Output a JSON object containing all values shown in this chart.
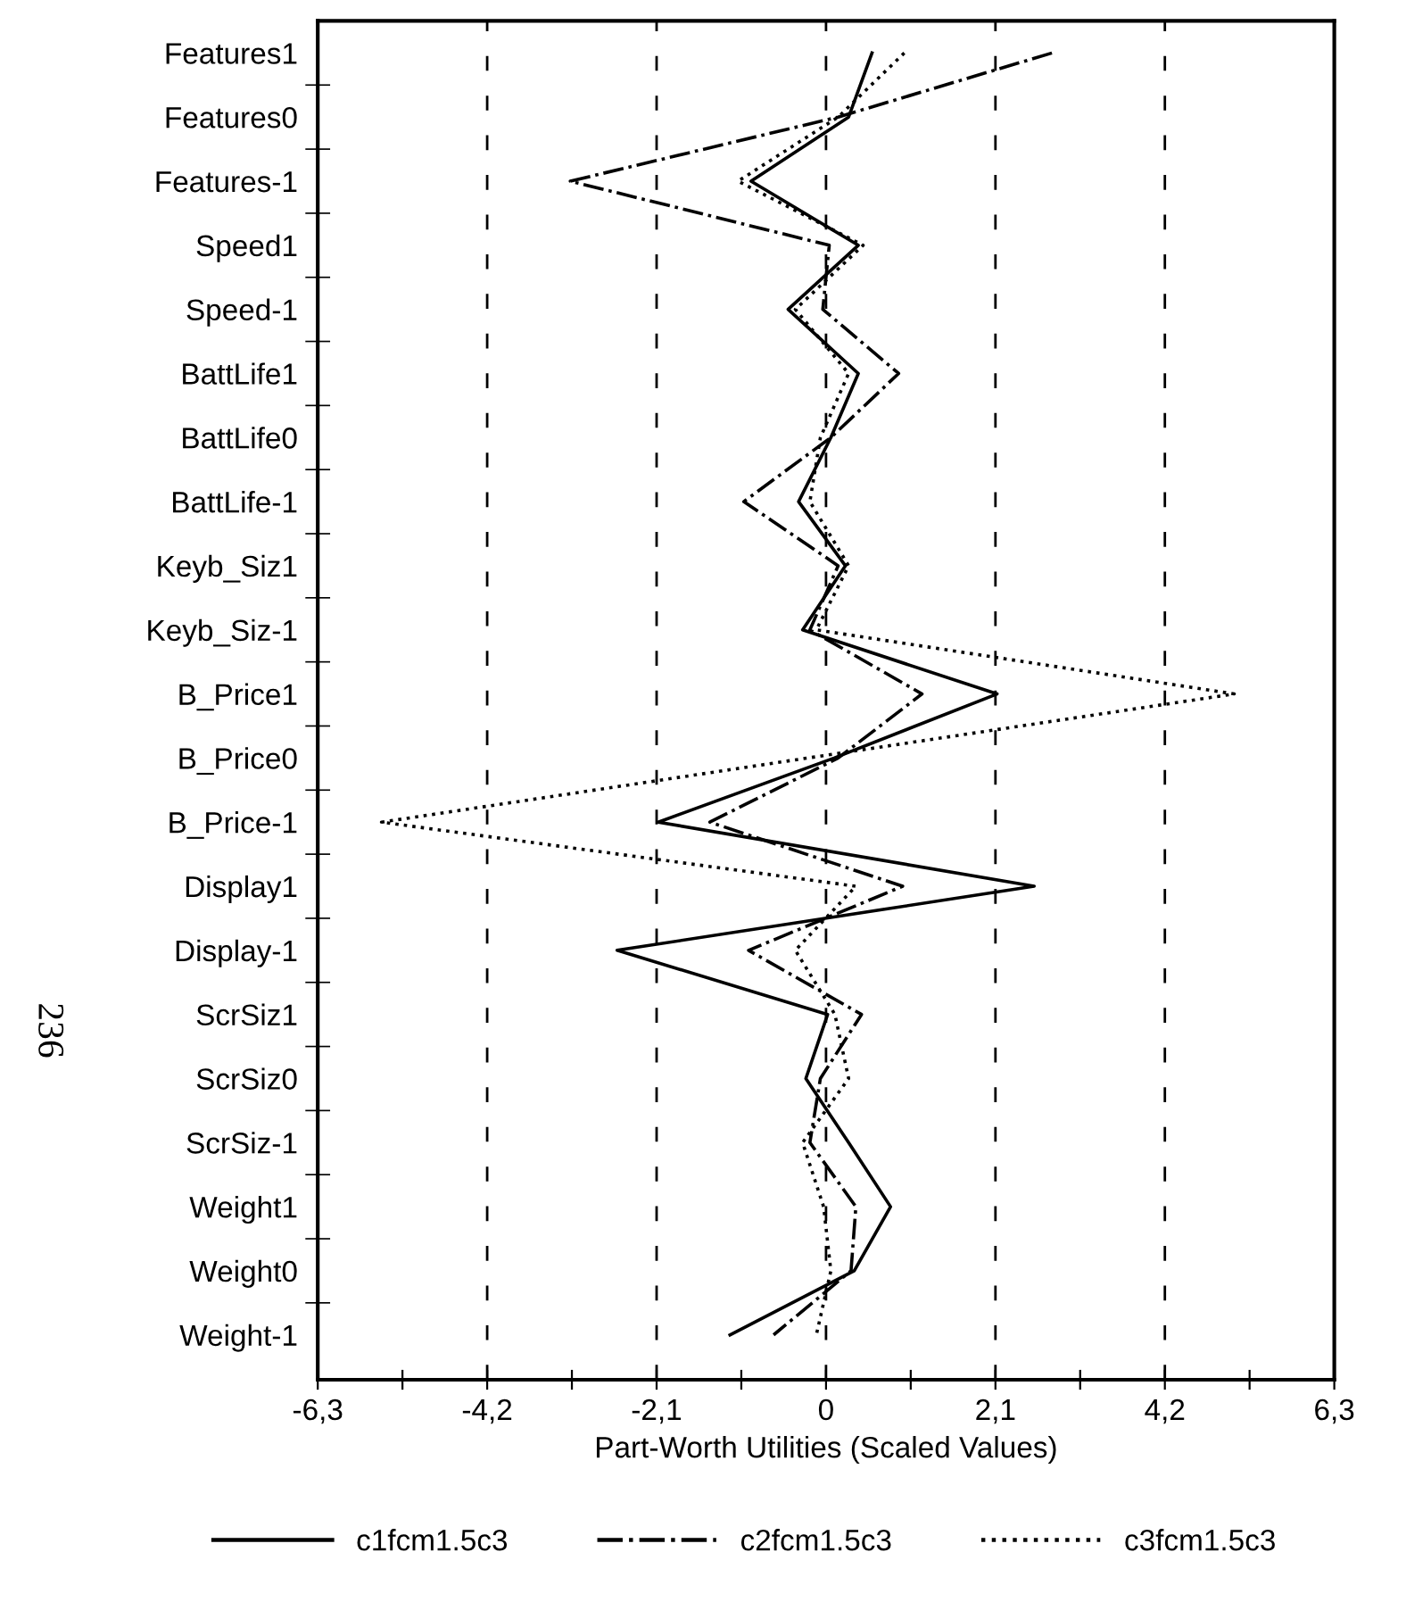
{
  "chart_data": {
    "type": "line",
    "orientation": "horizontal",
    "categories": [
      "Features1",
      "Features0",
      "Features-1",
      "Speed1",
      "Speed-1",
      "BattLife1",
      "BattLife0",
      "BattLife-1",
      "Keyb_Siz1",
      "Keyb_Siz-1",
      "B_Price1",
      "B_Price0",
      "B_Price-1",
      "Display1",
      "Display-1",
      "ScrSiz1",
      "ScrSiz0",
      "ScrSiz-1",
      "Weight1",
      "Weight0",
      "Weight-1"
    ],
    "series": [
      {
        "name": "c1fcm1.5c3",
        "color": "#000000",
        "line_style": "solid",
        "values": [
          0.57,
          0.28,
          -0.93,
          0.4,
          -0.47,
          0.4,
          0.06,
          -0.34,
          0.24,
          -0.29,
          2.12,
          0.1,
          -2.08,
          2.58,
          -2.59,
          0.02,
          -0.25,
          0.28,
          0.8,
          0.35,
          -1.19
        ]
      },
      {
        "name": "c2fcm1.5c3",
        "color": "#000000",
        "line_style": "dashdot",
        "values": [
          2.8,
          0.15,
          -3.17,
          0.04,
          -0.04,
          0.9,
          0.06,
          -1.02,
          0.15,
          -0.2,
          1.19,
          0.15,
          -1.44,
          0.95,
          -0.96,
          0.44,
          -0.07,
          -0.2,
          0.37,
          0.31,
          -0.65
        ]
      },
      {
        "name": "c3fcm1.5c3",
        "color": "#000000",
        "line_style": "dotted",
        "values": [
          0.97,
          0.15,
          -1.09,
          0.46,
          -0.38,
          0.28,
          -0.07,
          -0.2,
          0.28,
          -0.12,
          5.06,
          -0.23,
          -5.51,
          0.37,
          -0.38,
          0.11,
          0.28,
          -0.29,
          -0.03,
          0.06,
          -0.12
        ]
      }
    ],
    "xlabel": "Part-Worth Utilities (Scaled Values)",
    "xlim": [
      -6.3,
      6.3
    ],
    "xticks": [
      {
        "value": -6.3,
        "label": "-6,3"
      },
      {
        "value": -5.25,
        "label": null
      },
      {
        "value": -4.2,
        "label": "-4,2"
      },
      {
        "value": -3.15,
        "label": null
      },
      {
        "value": -2.1,
        "label": "-2,1"
      },
      {
        "value": -1.05,
        "label": null
      },
      0,
      {
        "value": 1.05,
        "label": null
      },
      {
        "value": 2.1,
        "label": "2,1"
      },
      {
        "value": 3.15,
        "label": null
      },
      {
        "value": 4.2,
        "label": "4,2"
      },
      {
        "value": 5.25,
        "label": null
      },
      {
        "value": 6.3,
        "label": "6,3"
      }
    ],
    "grid": "x",
    "legend": "bottom",
    "marker": "none",
    "annotations": [
      "236"
    ]
  }
}
